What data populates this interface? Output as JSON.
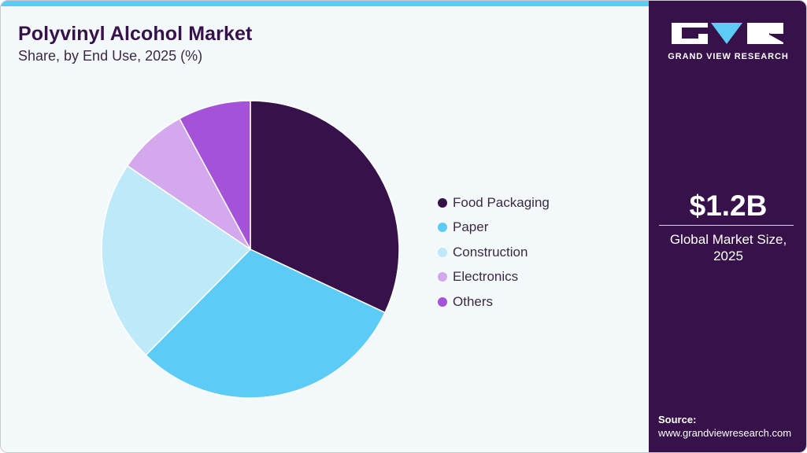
{
  "header": {
    "title": "Polyvinyl Alcohol Market",
    "subtitle": "Share, by End Use, 2025 (%)"
  },
  "colors": {
    "accent_bar": "#5ccbf5",
    "panel": "#36114a",
    "background": "#f3f8fb"
  },
  "legend": {
    "items": [
      {
        "label": "Food Packaging",
        "color": "#36114a"
      },
      {
        "label": "Paper",
        "color": "#5ccbf5"
      },
      {
        "label": "Construction",
        "color": "#bde9f8"
      },
      {
        "label": "Electronics",
        "color": "#d4a8ec"
      },
      {
        "label": "Others",
        "color": "#a452d8"
      }
    ]
  },
  "sidebar": {
    "brand": "GRAND VIEW RESEARCH",
    "market_size": "$1.2B",
    "market_caption_line1": "Global Market Size,",
    "market_caption_line2": "2025",
    "source_label": "Source:",
    "source_url": "www.grandviewresearch.com"
  },
  "chart_data": {
    "type": "pie",
    "title": "Polyvinyl Alcohol Market",
    "subtitle": "Share, by End Use, 2025 (%)",
    "categories": [
      "Food Packaging",
      "Paper",
      "Construction",
      "Electronics",
      "Others"
    ],
    "values": [
      32.0,
      30.4,
      22.1,
      7.6,
      7.9
    ],
    "colors": [
      "#36114a",
      "#5ccbf5",
      "#bde9f8",
      "#d4a8ec",
      "#a452d8"
    ],
    "start_angle": "12 o'clock, clockwise",
    "legend_position": "right",
    "data_labels": false
  }
}
